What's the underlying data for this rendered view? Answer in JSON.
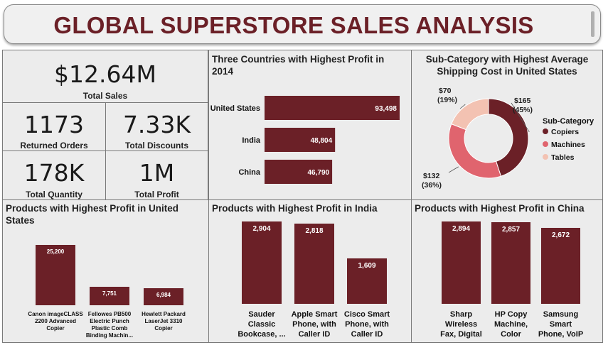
{
  "header": {
    "title": "GLOBAL SUPERSTORE SALES ANALYSIS"
  },
  "colors": {
    "bar": "#6b2027",
    "title": "#6b2027",
    "panel": "#ececec"
  },
  "kpis": {
    "total_sales": {
      "value": "$12.64M",
      "label": "Total Sales"
    },
    "returned_orders": {
      "value": "1173",
      "label": "Returned Orders"
    },
    "total_discounts": {
      "value": "7.33K",
      "label": "Total Discounts"
    },
    "total_quantity": {
      "value": "178K",
      "label": "Total Quantity"
    },
    "total_profit": {
      "value": "1M",
      "label": "Total Profit"
    }
  },
  "chart_data": [
    {
      "id": "countries",
      "type": "bar",
      "orientation": "horizontal",
      "title": "Three Countries with Highest Profit in 2014",
      "categories": [
        "United States",
        "India",
        "China"
      ],
      "values": [
        93498,
        48804,
        46790
      ],
      "labels": [
        "93,498",
        "48,804",
        "46,790"
      ],
      "xlim": [
        0,
        93498
      ]
    },
    {
      "id": "shipping",
      "type": "pie",
      "title": "Sub-Category with Highest Average Shipping Cost in United States",
      "legend_title": "Sub-Category",
      "legend_position": "right",
      "categories": [
        "Copiers",
        "Machines",
        "Tables"
      ],
      "values": [
        165,
        132,
        70
      ],
      "labels": [
        {
          "value": "$165",
          "pct": "(45%)"
        },
        {
          "value": "$132",
          "pct": "(36%)"
        },
        {
          "value": "$70",
          "pct": "(19%)"
        }
      ],
      "colors": [
        "#6b2027",
        "#e0646e",
        "#f3c2b2"
      ]
    },
    {
      "id": "us_products",
      "type": "bar",
      "title": "Products with Highest Profit in United States",
      "categories": [
        "Canon imageCLASS 2200 Advanced Copier",
        "Fellowes PB500 Electric Punch Plastic Comb Binding Machin...",
        "Hewlett Packard LaserJet 3310 Copier"
      ],
      "values": [
        25200,
        7751,
        6984
      ],
      "labels": [
        "25,200",
        "7,751",
        "6,984"
      ],
      "ylim": [
        0,
        30000
      ]
    },
    {
      "id": "india_products",
      "type": "bar",
      "title": "Products with Highest Profit in India",
      "categories": [
        "Sauder Classic Bookcase, ...",
        "Apple Smart Phone, with Caller ID",
        "Cisco Smart Phone, with Caller ID"
      ],
      "values": [
        2904,
        2818,
        1609
      ],
      "labels": [
        "2,904",
        "2,818",
        "1,609"
      ],
      "ylim": [
        0,
        2904
      ]
    },
    {
      "id": "china_products",
      "type": "bar",
      "title": "Products with Highest Profit in China",
      "categories": [
        "Sharp Wireless Fax, Digital",
        "HP Copy Machine, Color",
        "Samsung Smart Phone, VoIP"
      ],
      "values": [
        2894,
        2857,
        2672
      ],
      "labels": [
        "2,894",
        "2,857",
        "2,672"
      ],
      "ylim": [
        0,
        2894
      ]
    }
  ]
}
